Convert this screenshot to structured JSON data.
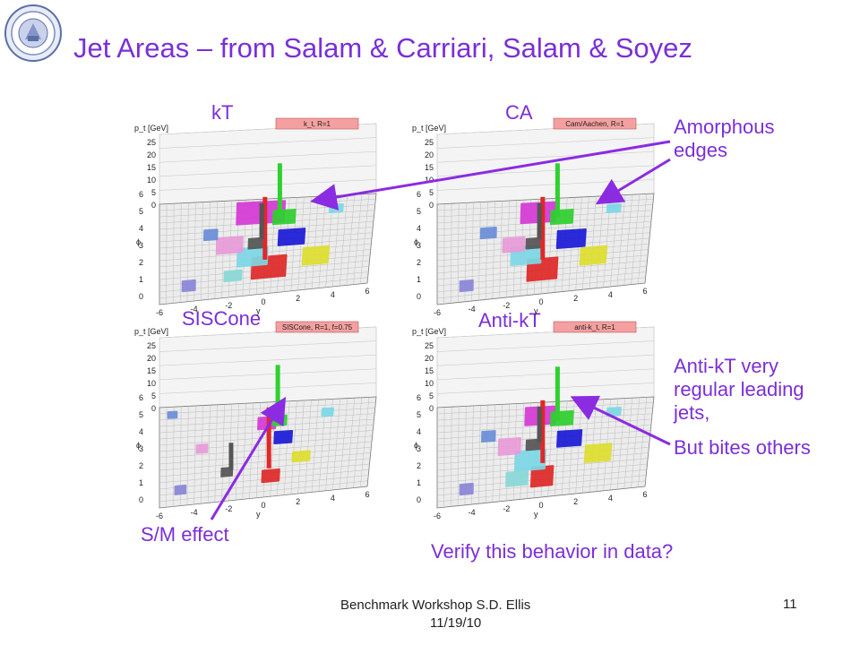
{
  "title": "Jet Areas – from Salam & Carriari, Salam & Soyez",
  "plots": [
    {
      "label": "kT",
      "header": "k_t, R=1"
    },
    {
      "label": "CA",
      "header": "Cam/Aachen, R=1"
    },
    {
      "label": "SISCone",
      "header": "SISCone, R=1, f=0.75"
    },
    {
      "label": "Anti-kT",
      "header": "anti-k_t, R=1"
    }
  ],
  "axis": {
    "ylabel": "p_t [GeV]",
    "pt_ticks": [
      "25",
      "20",
      "15",
      "10",
      "5",
      "0"
    ],
    "phi_label": "ϕ",
    "phi_ticks": [
      "6",
      "5",
      "4",
      "3",
      "2",
      "1",
      "0"
    ],
    "y_label": "y",
    "y_ticks": [
      "-6",
      "-4",
      "-2",
      "0",
      "2",
      "4",
      "6"
    ]
  },
  "annotations": {
    "amorphous_line1": "Amorphous",
    "amorphous_line2": "edges",
    "antikt_line1": "Anti-kT very",
    "antikt_line2": "regular leading",
    "antikt_line3": "jets,",
    "bites": "But bites others",
    "sm_effect": "S/M effect",
    "verify": "Verify this behavior in data?"
  },
  "footer": {
    "line1": "Benchmark Workshop   S.D. Ellis",
    "line2": "11/19/10",
    "page": "11"
  },
  "colors": {
    "accent": "#7b2fd6"
  }
}
